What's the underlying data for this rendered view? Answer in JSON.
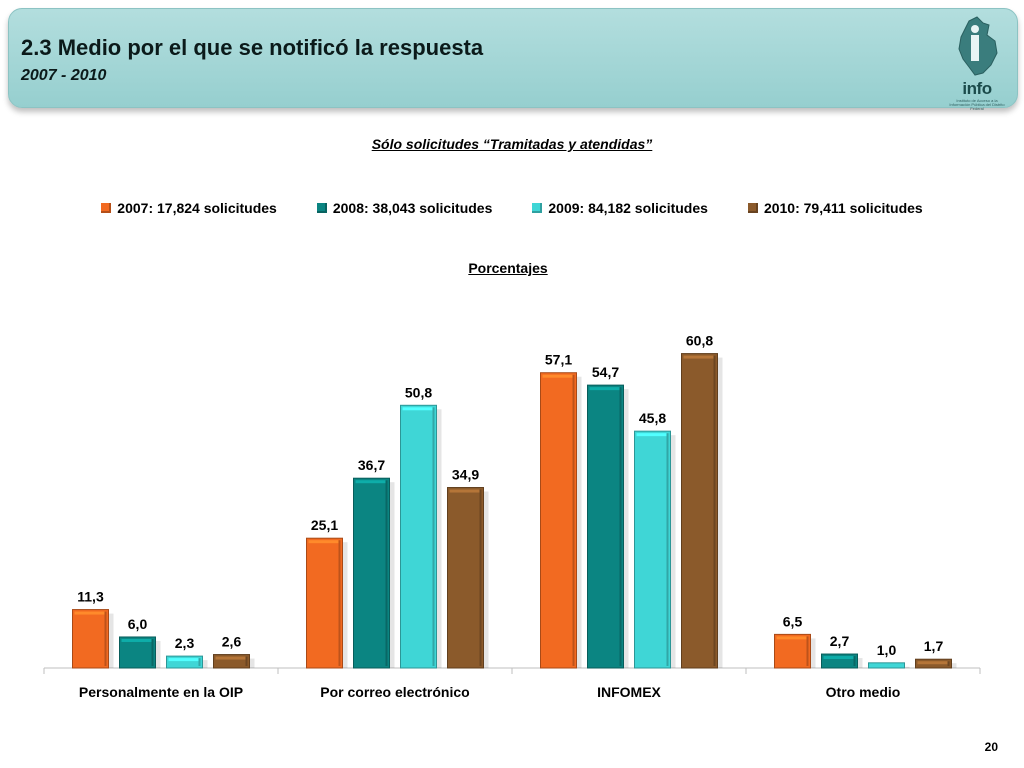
{
  "header": {
    "title": "2.3 Medio por el que se notificó la respuesta",
    "subtitle": "2007 - 2010",
    "logo_text": "info",
    "logo_sub": "Instituto de Acceso a la Información Pública del Distrito Federal"
  },
  "chart_data": {
    "type": "bar",
    "title": "Sólo solicitudes “Tramitadas y atendidas”",
    "ylabel": "Porcentajes",
    "xlabel": "",
    "ylim": [
      0,
      70
    ],
    "grid": false,
    "legend_position": "top",
    "categories": [
      "Personalmente en la OIP",
      "Por correo electrónico",
      "INFOMEX",
      "Otro medio"
    ],
    "series": [
      {
        "name": "2007: 17,824 solicitudes",
        "color": "#f26a21",
        "values": [
          11.3,
          25.1,
          57.1,
          6.5
        ],
        "labels": [
          "11,3",
          "25,1",
          "57,1",
          "6,5"
        ]
      },
      {
        "name": "2008: 38,043 solicitudes",
        "color": "#0b8582",
        "values": [
          6.0,
          36.7,
          54.7,
          2.7
        ],
        "labels": [
          "6,0",
          "36,7",
          "54,7",
          "2,7"
        ]
      },
      {
        "name": "2009: 84,182 solicitudes",
        "color": "#3fd6d6",
        "values": [
          2.3,
          50.8,
          45.8,
          1.0
        ],
        "labels": [
          "2,3",
          "50,8",
          "45,8",
          "1,0"
        ]
      },
      {
        "name": "2010: 79,411 solicitudes",
        "color": "#8b5a2b",
        "values": [
          2.6,
          34.9,
          60.8,
          1.7
        ],
        "labels": [
          "2,6",
          "34,9",
          "60,8",
          "1,7"
        ]
      }
    ]
  },
  "footer": {
    "page_number": "20"
  }
}
